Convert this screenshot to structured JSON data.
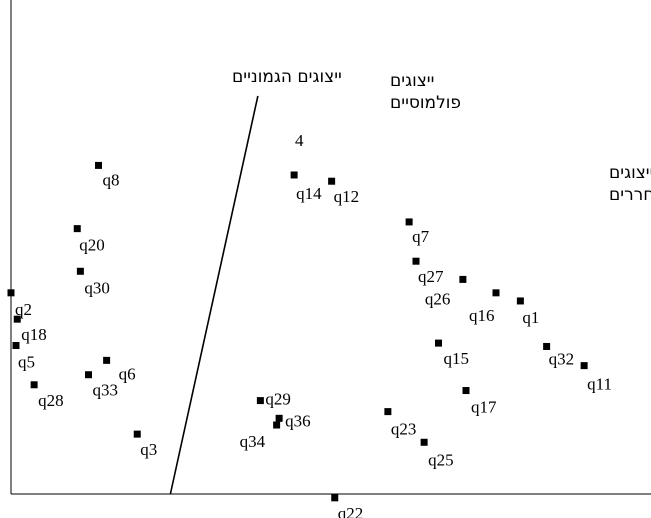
{
  "chart_data": {
    "type": "scatter",
    "grid": false,
    "xlim": [
      0,
      100
    ],
    "ylim": [
      0,
      100
    ],
    "regions": [
      {
        "id": "hegemonic",
        "lines": [
          "ייצוגים הגמוניים"
        ]
      },
      {
        "id": "polemic",
        "lines": [
          "ייצוגים",
          "פולמוסיים"
        ]
      },
      {
        "id": "emancipated",
        "lines": [
          "ייצוגים",
          "משוחררים"
        ]
      }
    ],
    "stray_label": "4",
    "divider": {
      "x1": 39.5,
      "y1": 83.1,
      "x2": 25.5,
      "y2": 0
    },
    "points": [
      {
        "label": "q8",
        "x": 14.0,
        "y": 68.6
      },
      {
        "label": "q20",
        "x": 10.6,
        "y": 55.4
      },
      {
        "label": "q30",
        "x": 11.1,
        "y": 46.5
      },
      {
        "label": "q2",
        "x": 0.0,
        "y": 42.0
      },
      {
        "label": "q18",
        "x": 1.0,
        "y": 36.5
      },
      {
        "label": "q5",
        "x": 0.8,
        "y": 31.0
      },
      {
        "label": "q28",
        "x": 3.7,
        "y": 22.8
      },
      {
        "label": "q33",
        "x": 12.4,
        "y": 24.9
      },
      {
        "label": "q6",
        "x": 15.3,
        "y": 27.9
      },
      {
        "label": "q3",
        "x": 20.2,
        "y": 12.5
      },
      {
        "label": "q14",
        "x": 45.3,
        "y": 66.6
      },
      {
        "label": "q12",
        "x": 51.3,
        "y": 65.3
      },
      {
        "label": "q7",
        "x": 63.7,
        "y": 56.8
      },
      {
        "label": "q27",
        "x": 64.8,
        "y": 48.6
      },
      {
        "label": "q26",
        "x": 72.3,
        "y": 44.8
      },
      {
        "label": "q16",
        "x": 77.6,
        "y": 42.0
      },
      {
        "label": "q1",
        "x": 81.5,
        "y": 40.3
      },
      {
        "label": "q15",
        "x": 68.4,
        "y": 31.5
      },
      {
        "label": "q32",
        "x": 85.7,
        "y": 30.8
      },
      {
        "label": "q11",
        "x": 91.7,
        "y": 26.8
      },
      {
        "label": "q17",
        "x": 72.8,
        "y": 21.6
      },
      {
        "label": "q23",
        "x": 60.3,
        "y": 17.2
      },
      {
        "label": "q25",
        "x": 66.1,
        "y": 10.8
      },
      {
        "label": "q29",
        "x": 39.9,
        "y": 19.5
      },
      {
        "label": "q36",
        "x": 42.9,
        "y": 15.8
      },
      {
        "label": "q34",
        "x": 42.5,
        "y": 14.4
      },
      {
        "label": "q22",
        "x": 51.8,
        "y": -0.8
      }
    ]
  }
}
